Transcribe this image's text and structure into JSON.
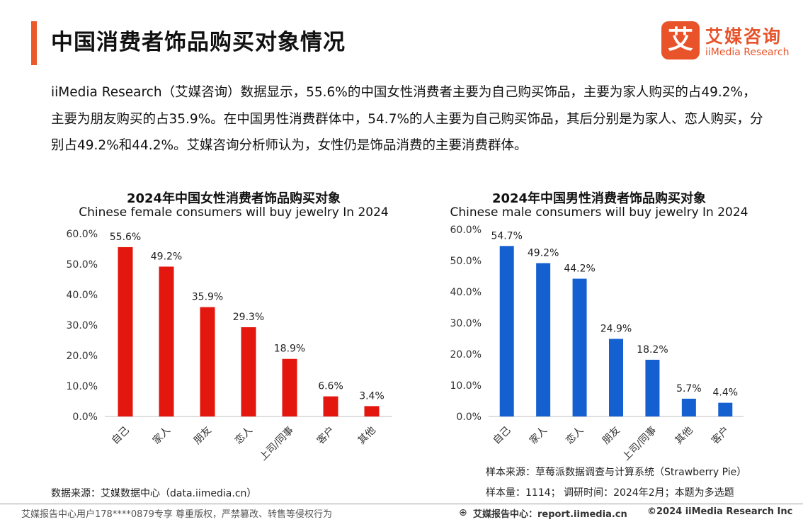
{
  "page": {
    "title": "中国消费者饰品购买对象情况",
    "intro": "iiMedia Research（艾媒咨询）数据显示，55.6%的中国女性消费者主要为自己购买饰品，主要为家人购买的占49.2%，主要为朋友购买的占35.9%。在中国男性消费群体中，54.7%的人主要为自己购买饰品，其后分别是为家人、恋人购买，分别占49.2%和44.2%。艾媒咨询分析师认为，女性仍是饰品消费的主要消费群体。"
  },
  "logo": {
    "mark": "艾",
    "cn": "艾媒咨询",
    "en": "iiMedia Research"
  },
  "colors": {
    "accent": "#ea5a2a",
    "female_bar": "#e3170d",
    "male_bar": "#1460d0",
    "axis": "#bfbfbf"
  },
  "chart_data": [
    {
      "type": "bar",
      "title": "2024年中国女性消费者饰品购买对象",
      "subtitle": "Chinese female consumers will buy jewelry In 2024",
      "categories": [
        "自己",
        "家人",
        "朋友",
        "恋人",
        "上司/同事",
        "客户",
        "其他"
      ],
      "values": [
        55.6,
        49.2,
        35.9,
        29.3,
        18.9,
        6.6,
        3.4
      ],
      "value_labels": [
        "55.6%",
        "49.2%",
        "35.9%",
        "29.3%",
        "18.9%",
        "6.6%",
        "3.4%"
      ],
      "unit": "%",
      "ylim": [
        0,
        60
      ],
      "yticks": [
        0,
        10,
        20,
        30,
        40,
        50,
        60
      ],
      "ytick_labels": [
        "0.0%",
        "10.0%",
        "20.0%",
        "30.0%",
        "40.0%",
        "50.0%",
        "60.0%"
      ],
      "grid": false,
      "color": "#e3170d"
    },
    {
      "type": "bar",
      "title": "2024年中国男性消费者饰品购买对象",
      "subtitle": "Chinese male consumers will buy jewelry In 2024",
      "categories": [
        "自己",
        "家人",
        "恋人",
        "朋友",
        "上司/同事",
        "其他",
        "客户"
      ],
      "values": [
        54.7,
        49.2,
        44.2,
        24.9,
        18.2,
        5.7,
        4.4
      ],
      "value_labels": [
        "54.7%",
        "49.2%",
        "44.2%",
        "24.9%",
        "18.2%",
        "5.7%",
        "4.4%"
      ],
      "unit": "%",
      "ylim": [
        0,
        60
      ],
      "yticks": [
        0,
        10,
        20,
        30,
        40,
        50,
        60
      ],
      "ytick_labels": [
        "0.0%",
        "10.0%",
        "20.0%",
        "30.0%",
        "40.0%",
        "50.0%",
        "60.0%"
      ],
      "grid": false,
      "color": "#1460d0"
    }
  ],
  "notes": {
    "data_source": "数据来源：艾媒数据中心（data.iimedia.cn）",
    "sample_source": "样本来源：草莓派数据调查与计算系统（Strawberry Pie）",
    "sample_size": "样本量：1114；  调研时间：2024年2月；本题为多选题"
  },
  "footer": {
    "left": "艾媒报告中心用户178****0879专享 尊重版权，严禁篡改、转售等侵权行为",
    "center": "艾媒报告中心：report.iimedia.cn",
    "right": "©2024  iiMedia Research  Inc",
    "icon": "globe-icon"
  }
}
